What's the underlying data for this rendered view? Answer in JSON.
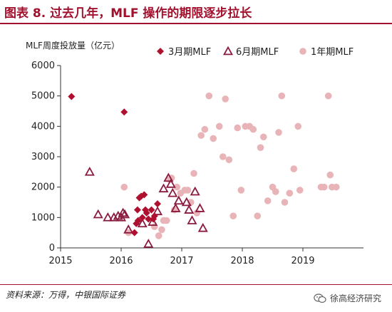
{
  "figure": {
    "title": "图表 8. 过去几年，MLF 操作的期限逐步拉长",
    "source": "资料来源：万得，中银国际证券",
    "watermark": "徐高经济研究"
  },
  "chart_data": {
    "type": "scatter",
    "title": "",
    "ylabel": "MLF周度投放量（亿元）",
    "xlabel": "",
    "xlim": [
      2015,
      2020
    ],
    "ylim": [
      0,
      6000
    ],
    "xticks": [
      2015,
      2016,
      2017,
      2018,
      2019
    ],
    "yticks": [
      0,
      1000,
      2000,
      3000,
      4000,
      5000,
      6000
    ],
    "legend_position": "top",
    "series": [
      {
        "name": "3月期MLF",
        "marker": "diamond",
        "color": "#b01030",
        "x": [
          2015.18,
          2016.05,
          2016.22,
          2016.25,
          2016.27,
          2016.28,
          2016.3,
          2016.33,
          2016.35,
          2016.38,
          2016.4,
          2016.42,
          2016.45,
          2016.5,
          2016.53,
          2016.55,
          2016.6
        ],
        "y": [
          4980,
          4470,
          500,
          800,
          1250,
          900,
          1650,
          1700,
          1000,
          1750,
          1250,
          1150,
          950,
          1250,
          950,
          1050,
          1450
        ]
      },
      {
        "name": "6月期MLF",
        "marker": "triangle",
        "color": "#8a1a3e",
        "x": [
          2015.48,
          2015.62,
          2015.78,
          2015.88,
          2015.95,
          2016.0,
          2016.03,
          2016.06,
          2016.12,
          2016.35,
          2016.45,
          2016.52,
          2016.6,
          2016.7,
          2016.78,
          2016.82,
          2016.85,
          2016.9,
          2016.95,
          2017.08,
          2017.12,
          2017.17,
          2017.22,
          2017.3,
          2017.35
        ],
        "y": [
          2500,
          1100,
          1000,
          1000,
          1050,
          1000,
          1150,
          1100,
          600,
          800,
          130,
          850,
          1200,
          1950,
          2300,
          2100,
          1800,
          1300,
          1550,
          1500,
          1250,
          900,
          1850,
          1300,
          650
        ]
      },
      {
        "name": "1年期MLF",
        "marker": "circle",
        "color": "#e8b4b8",
        "x": [
          2016.05,
          2016.12,
          2016.55,
          2016.62,
          2016.67,
          2016.7,
          2016.75,
          2016.8,
          2016.83,
          2016.88,
          2016.92,
          2016.98,
          2017.05,
          2017.1,
          2017.15,
          2017.2,
          2017.25,
          2017.32,
          2017.38,
          2017.45,
          2017.52,
          2017.62,
          2017.68,
          2017.72,
          2017.78,
          2017.85,
          2017.92,
          2017.98,
          2018.05,
          2018.12,
          2018.18,
          2018.25,
          2018.3,
          2018.35,
          2018.42,
          2018.5,
          2018.55,
          2018.6,
          2018.65,
          2018.7,
          2018.78,
          2018.85,
          2018.92,
          2018.95,
          2019.3,
          2019.35,
          2019.42,
          2019.45,
          2019.48,
          2019.55
        ],
        "y": [
          2000,
          500,
          700,
          400,
          600,
          900,
          900,
          2250,
          2300,
          1250,
          2000,
          1800,
          1900,
          1900,
          1500,
          2450,
          1150,
          3700,
          3900,
          5000,
          3600,
          4000,
          3000,
          4900,
          2900,
          1050,
          3950,
          1900,
          4000,
          4000,
          3900,
          1050,
          3300,
          3650,
          1550,
          2000,
          1850,
          3800,
          5000,
          1500,
          1800,
          2600,
          4000,
          1900,
          2000,
          2000,
          5000,
          2400,
          2000,
          2000
        ]
      }
    ]
  }
}
